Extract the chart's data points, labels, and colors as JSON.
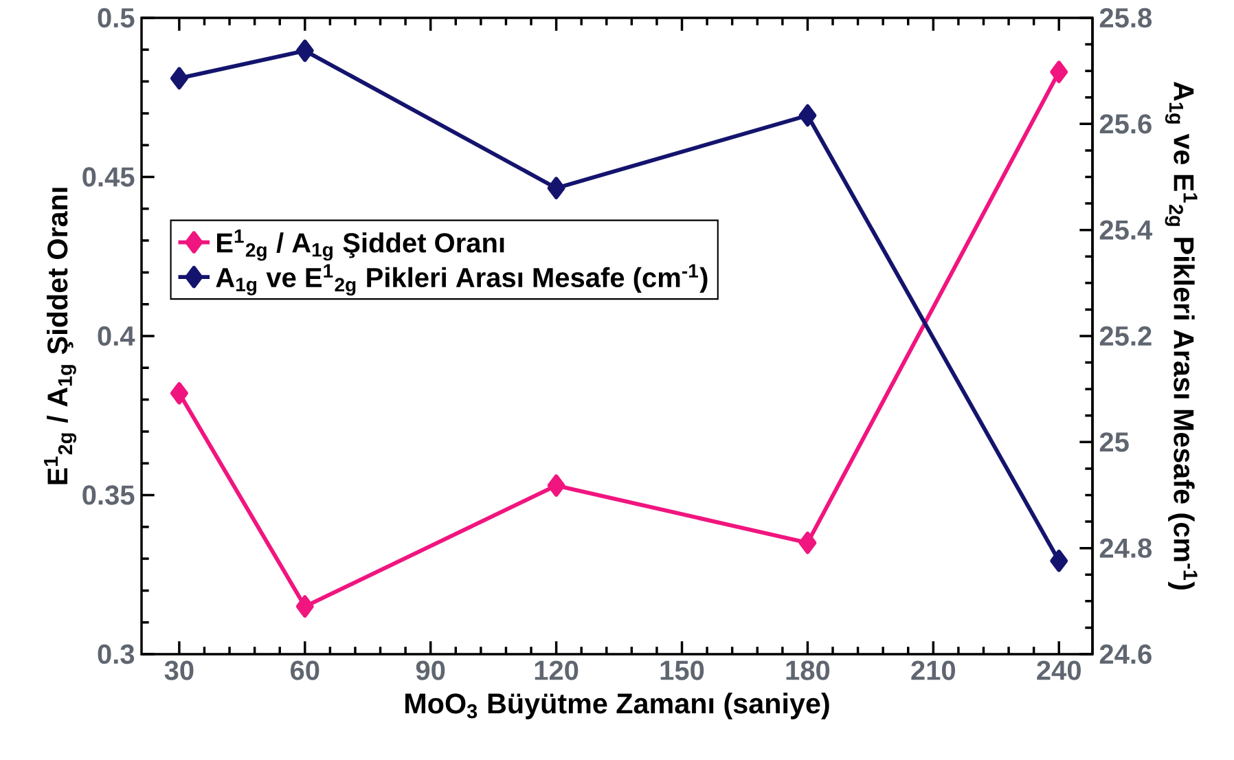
{
  "chart_data": {
    "type": "line",
    "xlabel": "MoO$_{3}$ Büyütme Zamanı (saniye)",
    "ylabel": "E$^{1}$$_{2g}$ / A$_{1g}$ Şiddet Oranı",
    "y2label": "A$_{1g}$ ve E$^{1}$$_{2g}$ Pikleri Arası Mesafe (cm$^{-1}$)",
    "x": [
      30,
      60,
      120,
      180,
      240
    ],
    "series": [
      {
        "name": "E$^{1}$$_{2g}$ / A$_{1g}$ Şiddet Oranı",
        "color": "#f0157f",
        "values": [
          0.382,
          0.315,
          0.353,
          0.335,
          0.483
        ]
      },
      {
        "name": "A$_{1g}$ ve E$^{1}$$_{2g}$ Pikleri Arası Mesafe (cm$^{-1}$)",
        "color": "#14146e",
        "axis": "y2",
        "values": [
          25.686,
          25.738,
          25.479,
          25.616,
          24.776
        ]
      }
    ],
    "xlim": [
      21,
      248
    ],
    "xticks": [
      30,
      60,
      90,
      120,
      150,
      180,
      210,
      240
    ],
    "ylim": [
      0.3,
      0.5
    ],
    "yticks": [
      0.3,
      0.35,
      0.4,
      0.45,
      0.5
    ],
    "y2lim": [
      24.6,
      25.8
    ],
    "y2ticks": [
      24.6,
      24.8,
      25,
      25.2,
      25.4,
      25.6,
      25.8
    ],
    "grid": false,
    "legend": "left",
    "marker": "diamond",
    "line_style": "solid"
  }
}
